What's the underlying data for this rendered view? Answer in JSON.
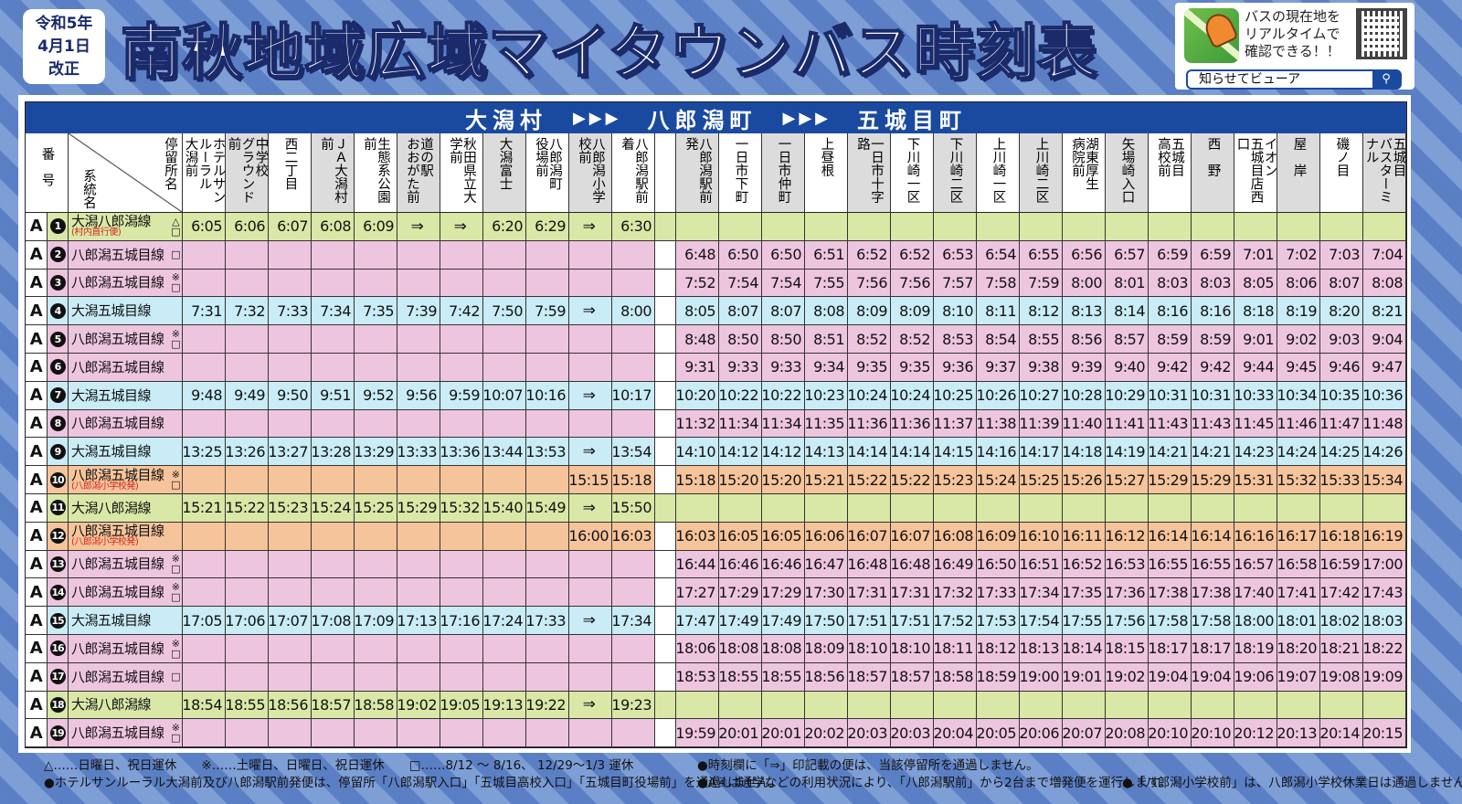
{
  "header": {
    "revision": "令和5年\n4月1日\n改正",
    "title": "南秋地域広域マイタウンバス時刻表",
    "promo": {
      "text": "バスの現在地を\nリアルタイムで\n確認できる！！",
      "search_label": "知らせてビューア",
      "icon": "bell-app-icon",
      "search_icon": "magnifier-icon"
    }
  },
  "band": {
    "from": "大潟村",
    "via": "八郎潟町",
    "to": "五城目町",
    "arrows": "▶▶▶"
  },
  "table": {
    "no_header": "番号",
    "route_header": "系統名",
    "stop_header": "停留所名",
    "stops_left": [
      "ホテルサンルーラル\n大潟前",
      "中学校\nグラウンド前",
      "西二丁目",
      "ＪＡ大潟村前",
      "生態系公園前",
      "道の駅\nおおがた前",
      "秋田県立大学前",
      "大潟富士",
      "八郎潟町\n役場前",
      "八郎潟小学校前",
      "八郎潟駅前着"
    ],
    "stops_right": [
      "八郎潟駅前発",
      "一日市下町",
      "一日市仲町",
      "上昼根",
      "一日市十字路",
      "下川崎一区",
      "下川崎二区",
      "上川崎一区",
      "上川崎二区",
      "湖東厚生\n病院前",
      "矢場崎入口",
      "五城目\n高校前",
      "西　野",
      "イオン\n五城目店西口",
      "屋　岸",
      "磯ノ目",
      "五城目\nバスターミナル"
    ],
    "row_colors": {
      "green": "#d9e8a6",
      "pink": "#eec5df",
      "blue": "#c9ecf6",
      "orange": "#f6c49b"
    },
    "rows": [
      {
        "line": "A",
        "no": "1",
        "route": "大潟八郎潟線",
        "sub": "(村内直行便)",
        "marks": [
          "△",
          "□"
        ],
        "color": "green",
        "left": [
          "6:05",
          "6:06",
          "6:07",
          "6:08",
          "6:09",
          "⇒",
          "⇒",
          "6:20",
          "6:29",
          "⇒",
          "6:30"
        ],
        "right": []
      },
      {
        "line": "A",
        "no": "2",
        "route": "八郎潟五城目線",
        "sub": "",
        "marks": [
          "□"
        ],
        "color": "pink",
        "left": [],
        "right": [
          "6:48",
          "6:50",
          "6:50",
          "6:51",
          "6:52",
          "6:52",
          "6:53",
          "6:54",
          "6:55",
          "6:56",
          "6:57",
          "6:59",
          "6:59",
          "7:01",
          "7:02",
          "7:03",
          "7:04"
        ]
      },
      {
        "line": "A",
        "no": "3",
        "route": "八郎潟五城目線",
        "sub": "",
        "marks": [
          "※",
          "□"
        ],
        "color": "pink",
        "left": [],
        "right": [
          "7:52",
          "7:54",
          "7:54",
          "7:55",
          "7:56",
          "7:56",
          "7:57",
          "7:58",
          "7:59",
          "8:00",
          "8:01",
          "8:03",
          "8:03",
          "8:05",
          "8:06",
          "8:07",
          "8:08"
        ]
      },
      {
        "line": "A",
        "no": "4",
        "route": "大潟五城目線",
        "sub": "",
        "marks": [],
        "color": "blue",
        "left": [
          "7:31",
          "7:32",
          "7:33",
          "7:34",
          "7:35",
          "7:39",
          "7:42",
          "7:50",
          "7:59",
          "⇒",
          "8:00"
        ],
        "right": [
          "8:05",
          "8:07",
          "8:07",
          "8:08",
          "8:09",
          "8:09",
          "8:10",
          "8:11",
          "8:12",
          "8:13",
          "8:14",
          "8:16",
          "8:16",
          "8:18",
          "8:19",
          "8:20",
          "8:21"
        ]
      },
      {
        "line": "A",
        "no": "5",
        "route": "八郎潟五城目線",
        "sub": "",
        "marks": [
          "※",
          "□"
        ],
        "color": "pink",
        "left": [],
        "right": [
          "8:48",
          "8:50",
          "8:50",
          "8:51",
          "8:52",
          "8:52",
          "8:53",
          "8:54",
          "8:55",
          "8:56",
          "8:57",
          "8:59",
          "8:59",
          "9:01",
          "9:02",
          "9:03",
          "9:04"
        ]
      },
      {
        "line": "A",
        "no": "6",
        "route": "八郎潟五城目線",
        "sub": "",
        "marks": [],
        "color": "pink",
        "left": [],
        "right": [
          "9:31",
          "9:33",
          "9:33",
          "9:34",
          "9:35",
          "9:35",
          "9:36",
          "9:37",
          "9:38",
          "9:39",
          "9:40",
          "9:42",
          "9:42",
          "9:44",
          "9:45",
          "9:46",
          "9:47"
        ]
      },
      {
        "line": "A",
        "no": "7",
        "route": "大潟五城目線",
        "sub": "",
        "marks": [],
        "color": "blue",
        "left": [
          "9:48",
          "9:49",
          "9:50",
          "9:51",
          "9:52",
          "9:56",
          "9:59",
          "10:07",
          "10:16",
          "⇒",
          "10:17"
        ],
        "right": [
          "10:20",
          "10:22",
          "10:22",
          "10:23",
          "10:24",
          "10:24",
          "10:25",
          "10:26",
          "10:27",
          "10:28",
          "10:29",
          "10:31",
          "10:31",
          "10:33",
          "10:34",
          "10:35",
          "10:36"
        ]
      },
      {
        "line": "A",
        "no": "8",
        "route": "八郎潟五城目線",
        "sub": "",
        "marks": [],
        "color": "pink",
        "left": [],
        "right": [
          "11:32",
          "11:34",
          "11:34",
          "11:35",
          "11:36",
          "11:36",
          "11:37",
          "11:38",
          "11:39",
          "11:40",
          "11:41",
          "11:43",
          "11:43",
          "11:45",
          "11:46",
          "11:47",
          "11:48"
        ]
      },
      {
        "line": "A",
        "no": "9",
        "route": "大潟五城目線",
        "sub": "",
        "marks": [],
        "color": "blue",
        "left": [
          "13:25",
          "13:26",
          "13:27",
          "13:28",
          "13:29",
          "13:33",
          "13:36",
          "13:44",
          "13:53",
          "⇒",
          "13:54"
        ],
        "right": [
          "14:10",
          "14:12",
          "14:12",
          "14:13",
          "14:14",
          "14:14",
          "14:15",
          "14:16",
          "14:17",
          "14:18",
          "14:19",
          "14:21",
          "14:21",
          "14:23",
          "14:24",
          "14:25",
          "14:26"
        ]
      },
      {
        "line": "A",
        "no": "10",
        "route": "八郎潟五城目線",
        "sub": "(八郎潟小学校発)",
        "marks": [
          "※",
          "□"
        ],
        "color": "orange",
        "left": [
          "",
          "",
          "",
          "",
          "",
          "",
          "",
          "",
          "",
          "15:15",
          "15:18"
        ],
        "right": [
          "15:18",
          "15:20",
          "15:20",
          "15:21",
          "15:22",
          "15:22",
          "15:23",
          "15:24",
          "15:25",
          "15:26",
          "15:27",
          "15:29",
          "15:29",
          "15:31",
          "15:32",
          "15:33",
          "15:34"
        ]
      },
      {
        "line": "A",
        "no": "11",
        "route": "大潟八郎潟線",
        "sub": "",
        "marks": [],
        "color": "green",
        "left": [
          "15:21",
          "15:22",
          "15:23",
          "15:24",
          "15:25",
          "15:29",
          "15:32",
          "15:40",
          "15:49",
          "⇒",
          "15:50"
        ],
        "right": []
      },
      {
        "line": "A",
        "no": "12",
        "route": "八郎潟五城目線",
        "sub": "(八郎潟小学校発)",
        "marks": [],
        "color": "orange",
        "left": [
          "",
          "",
          "",
          "",
          "",
          "",
          "",
          "",
          "",
          "16:00",
          "16:03"
        ],
        "right": [
          "16:03",
          "16:05",
          "16:05",
          "16:06",
          "16:07",
          "16:07",
          "16:08",
          "16:09",
          "16:10",
          "16:11",
          "16:12",
          "16:14",
          "16:14",
          "16:16",
          "16:17",
          "16:18",
          "16:19"
        ]
      },
      {
        "line": "A",
        "no": "13",
        "route": "八郎潟五城目線",
        "sub": "",
        "marks": [
          "※",
          "□"
        ],
        "color": "pink",
        "left": [],
        "right": [
          "16:44",
          "16:46",
          "16:46",
          "16:47",
          "16:48",
          "16:48",
          "16:49",
          "16:50",
          "16:51",
          "16:52",
          "16:53",
          "16:55",
          "16:55",
          "16:57",
          "16:58",
          "16:59",
          "17:00"
        ]
      },
      {
        "line": "A",
        "no": "14",
        "route": "八郎潟五城目線",
        "sub": "",
        "marks": [
          "※",
          "□"
        ],
        "color": "pink",
        "left": [],
        "right": [
          "17:27",
          "17:29",
          "17:29",
          "17:30",
          "17:31",
          "17:31",
          "17:32",
          "17:33",
          "17:34",
          "17:35",
          "17:36",
          "17:38",
          "17:38",
          "17:40",
          "17:41",
          "17:42",
          "17:43"
        ]
      },
      {
        "line": "A",
        "no": "15",
        "route": "大潟五城目線",
        "sub": "",
        "marks": [],
        "color": "blue",
        "left": [
          "17:05",
          "17:06",
          "17:07",
          "17:08",
          "17:09",
          "17:13",
          "17:16",
          "17:24",
          "17:33",
          "⇒",
          "17:34"
        ],
        "right": [
          "17:47",
          "17:49",
          "17:49",
          "17:50",
          "17:51",
          "17:51",
          "17:52",
          "17:53",
          "17:54",
          "17:55",
          "17:56",
          "17:58",
          "17:58",
          "18:00",
          "18:01",
          "18:02",
          "18:03"
        ]
      },
      {
        "line": "A",
        "no": "16",
        "route": "八郎潟五城目線",
        "sub": "",
        "marks": [
          "※",
          "□"
        ],
        "color": "pink",
        "left": [],
        "right": [
          "18:06",
          "18:08",
          "18:08",
          "18:09",
          "18:10",
          "18:10",
          "18:11",
          "18:12",
          "18:13",
          "18:14",
          "18:15",
          "18:17",
          "18:17",
          "18:19",
          "18:20",
          "18:21",
          "18:22"
        ]
      },
      {
        "line": "A",
        "no": "17",
        "route": "八郎潟五城目線",
        "sub": "",
        "marks": [
          "□"
        ],
        "color": "pink",
        "left": [],
        "right": [
          "18:53",
          "18:55",
          "18:55",
          "18:56",
          "18:57",
          "18:57",
          "18:58",
          "18:59",
          "19:00",
          "19:01",
          "19:02",
          "19:04",
          "19:04",
          "19:06",
          "19:07",
          "19:08",
          "19:09"
        ]
      },
      {
        "line": "A",
        "no": "18",
        "route": "大潟八郎潟線",
        "sub": "",
        "marks": [],
        "color": "green",
        "left": [
          "18:54",
          "18:55",
          "18:56",
          "18:57",
          "18:58",
          "19:02",
          "19:05",
          "19:13",
          "19:22",
          "⇒",
          "19:23"
        ],
        "right": []
      },
      {
        "line": "A",
        "no": "19",
        "route": "八郎潟五城目線",
        "sub": "",
        "marks": [
          "※",
          "□"
        ],
        "color": "pink",
        "left": [],
        "right": [
          "19:59",
          "20:01",
          "20:01",
          "20:02",
          "20:03",
          "20:03",
          "20:04",
          "20:05",
          "20:06",
          "20:07",
          "20:08",
          "20:10",
          "20:10",
          "20:12",
          "20:13",
          "20:14",
          "20:15"
        ]
      }
    ]
  },
  "notes": {
    "n1": "△……日曜日、祝日運休　　※……土曜日、日曜日、祝日運休　　□……8/12 ～ 8/16、 12/29～1/3 運休",
    "n2": "●ホテルサンルーラル大潟前及び八郎潟駅前発便は、停留所「八郎潟駅入口」「五城目高校入口」「五城目町役場前」を通過しません。",
    "n3": "●時刻欄に「⇒」印記載の便は、当該停留所を通過しません。",
    "n4": "●A④は通学などの利用状況により、「八郎潟駅前」から2台まで増発便を運行します。",
    "n5": "●「八郎潟小学校前」は、八郎潟小学校休業日は通過しません。"
  }
}
